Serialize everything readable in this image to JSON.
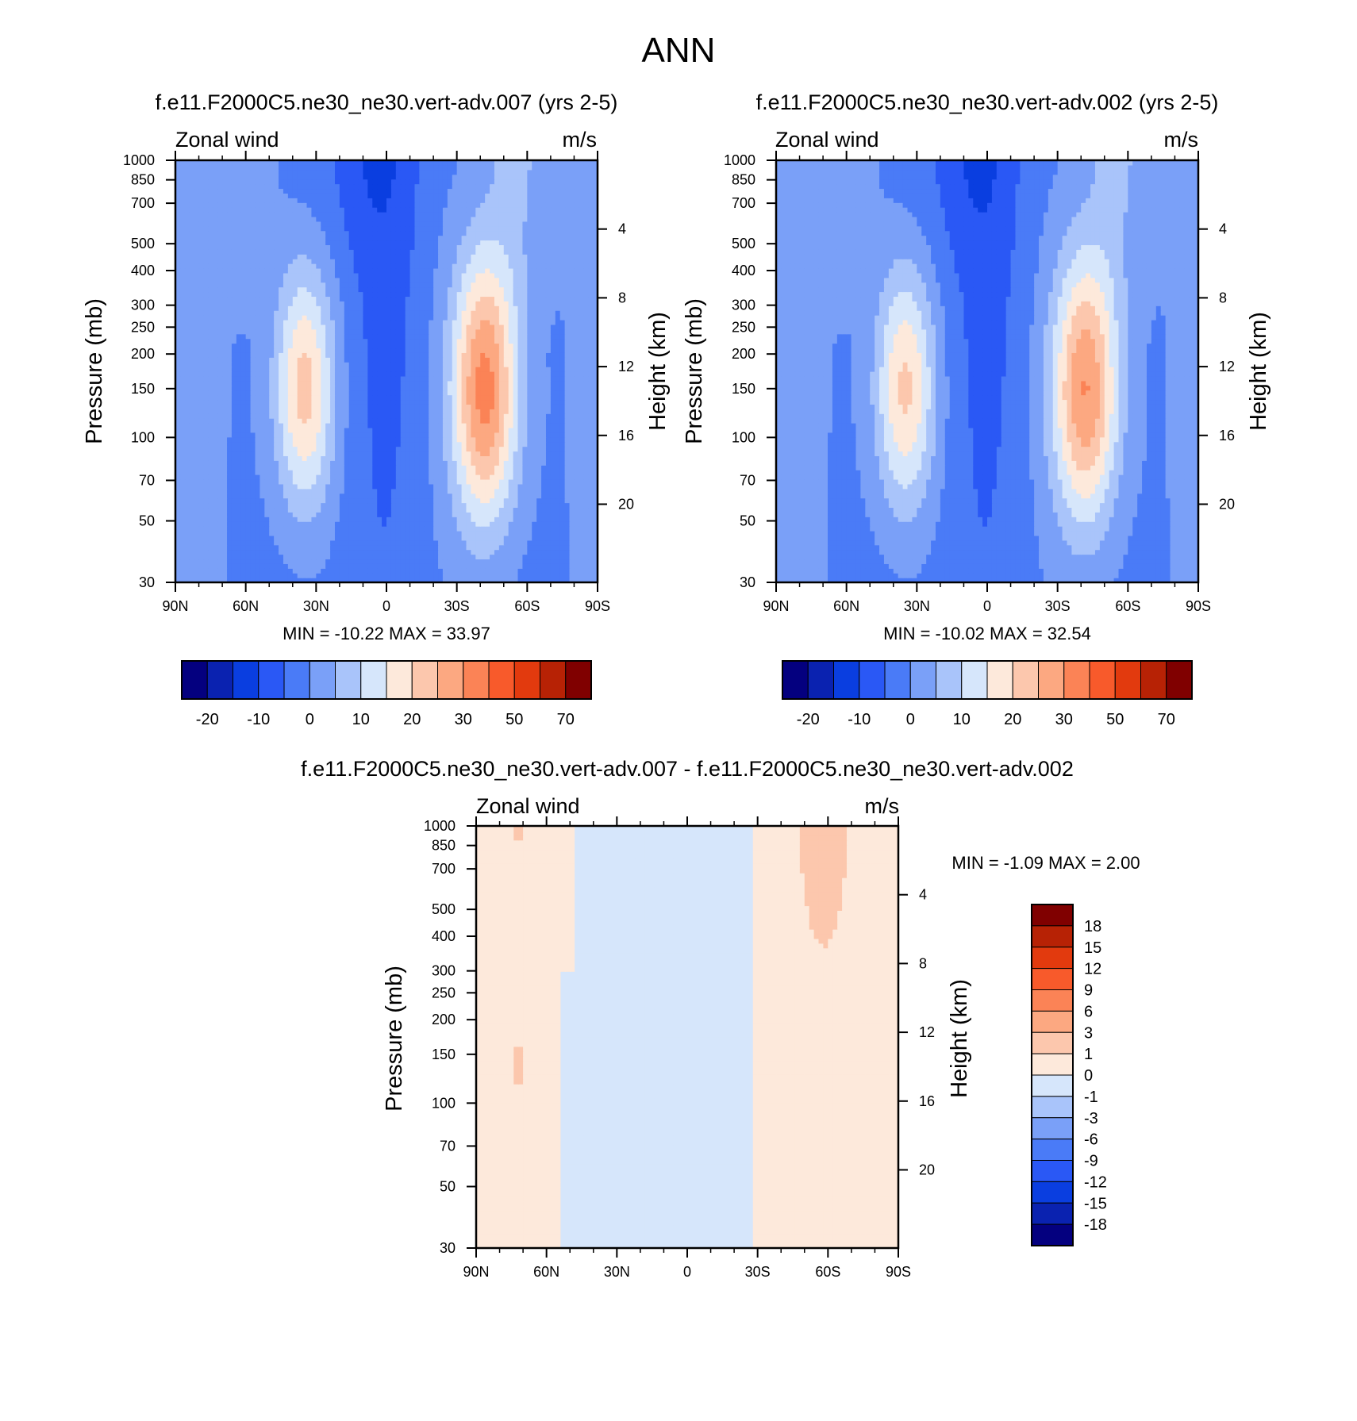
{
  "figure_title": "ANN",
  "colors": {
    "abs_levels": [
      "#04007f",
      "#0a22b0",
      "#0a3ee0",
      "#2a58f5",
      "#4a7bf7",
      "#7aa0f8",
      "#a9c4fa",
      "#d6e6fb",
      "#fde9db",
      "#fcc7ad",
      "#fca881",
      "#fb8356",
      "#f85a2b",
      "#e23a0e",
      "#b72205",
      "#800000"
    ],
    "diff_levels": [
      "#800000",
      "#b72205",
      "#e23a0e",
      "#f85a2b",
      "#fb8356",
      "#fca881",
      "#fcc7ad",
      "#fde9db",
      "#d6e6fb",
      "#a9c4fa",
      "#7aa0f8",
      "#4a7bf7",
      "#2a58f5",
      "#0a3ee0",
      "#0a22b0",
      "#04007f"
    ]
  },
  "chart_data": [
    {
      "type": "heatmap",
      "title": "f.e11.F2000C5.ne30_ne30.vert-adv.007 (yrs 2-5)",
      "left_string": "Zonal wind",
      "right_string": "m/s",
      "xlabel": "",
      "ylabel": "Pressure (mb)",
      "y2label": "Height (km)",
      "xticklabels": [
        "90N",
        "60N",
        "30N",
        "0",
        "30S",
        "60S",
        "90S"
      ],
      "xtick_values": [
        90,
        60,
        30,
        0,
        -30,
        -60,
        -90
      ],
      "xlim": [
        90,
        -90
      ],
      "yticklabels": [
        "30",
        "50",
        "70",
        "100",
        "150",
        "200",
        "250",
        "300",
        "400",
        "500",
        "700",
        "850",
        "1000"
      ],
      "ylim": [
        1000,
        30
      ],
      "yscale": "log",
      "y2ticklabels": [
        "4",
        "8",
        "12",
        "16",
        "20"
      ],
      "stats": "MIN = -10.22  MAX =  33.97",
      "colorbar_labels": [
        "-20",
        "-10",
        "0",
        "10",
        "20",
        "30",
        "50",
        "70"
      ],
      "colorbar_orientation": "horizontal",
      "jets": [
        {
          "lat": 35,
          "p": 200,
          "amp": 24,
          "wlat": 9,
          "wlnp": 0.9
        },
        {
          "lat": -42,
          "p": 200,
          "amp": 34,
          "wlat": 10,
          "wlnp": 1.0
        }
      ]
    },
    {
      "type": "heatmap",
      "title": "f.e11.F2000C5.ne30_ne30.vert-adv.002 (yrs 2-5)",
      "left_string": "Zonal wind",
      "right_string": "m/s",
      "xlabel": "",
      "ylabel": "Pressure (mb)",
      "y2label": "Height (km)",
      "xticklabels": [
        "90N",
        "60N",
        "30N",
        "0",
        "30S",
        "60S",
        "90S"
      ],
      "xtick_values": [
        90,
        60,
        30,
        0,
        -30,
        -60,
        -90
      ],
      "xlim": [
        90,
        -90
      ],
      "yticklabels": [
        "30",
        "50",
        "70",
        "100",
        "150",
        "200",
        "250",
        "300",
        "400",
        "500",
        "700",
        "850",
        "1000"
      ],
      "ylim": [
        1000,
        30
      ],
      "yscale": "log",
      "y2ticklabels": [
        "4",
        "8",
        "12",
        "16",
        "20"
      ],
      "stats": "MIN = -10.02  MAX =  32.54",
      "colorbar_labels": [
        "-20",
        "-10",
        "0",
        "10",
        "20",
        "30",
        "50",
        "70"
      ],
      "colorbar_orientation": "horizontal",
      "jets": [
        {
          "lat": 35,
          "p": 200,
          "amp": 23,
          "wlat": 9,
          "wlnp": 0.9
        },
        {
          "lat": -42,
          "p": 200,
          "amp": 32,
          "wlat": 10,
          "wlnp": 1.0
        }
      ]
    },
    {
      "type": "heatmap",
      "title": "f.e11.F2000C5.ne30_ne30.vert-adv.007 - f.e11.F2000C5.ne30_ne30.vert-adv.002",
      "left_string": "Zonal wind",
      "right_string": "m/s",
      "xlabel": "",
      "ylabel": "Pressure (mb)",
      "y2label": "Height (km)",
      "xticklabels": [
        "90N",
        "60N",
        "30N",
        "0",
        "30S",
        "60S",
        "90S"
      ],
      "xtick_values": [
        90,
        60,
        30,
        0,
        -30,
        -60,
        -90
      ],
      "xlim": [
        90,
        -90
      ],
      "yticklabels": [
        "30",
        "50",
        "70",
        "100",
        "150",
        "200",
        "250",
        "300",
        "400",
        "500",
        "700",
        "850",
        "1000"
      ],
      "ylim": [
        1000,
        30
      ],
      "yscale": "log",
      "y2ticklabels": [
        "4",
        "8",
        "12",
        "16",
        "20"
      ],
      "stats": "MIN =  -1.09  MAX =   2.00",
      "colorbar_labels": [
        "18",
        "15",
        "12",
        "9",
        "6",
        "3",
        "1",
        "0",
        "-1",
        "-3",
        "-6",
        "-9",
        "-12",
        "-15",
        "-18"
      ],
      "colorbar_orientation": "vertical"
    }
  ]
}
